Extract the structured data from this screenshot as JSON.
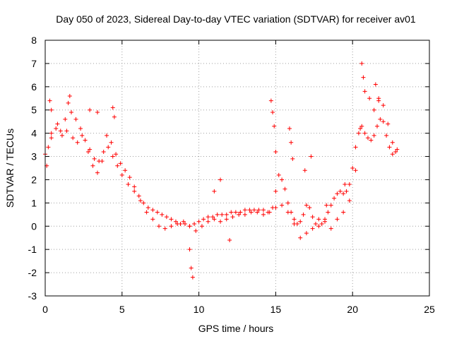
{
  "chart_data": {
    "type": "scatter",
    "title": "Day 050 of 2023, Sidereal Day-to-day VTEC variation (SDTVAR) for receiver av01",
    "xlabel": "GPS time / hours",
    "ylabel": "SDTVAR / TECUs",
    "xlim": [
      0,
      25
    ],
    "ylim": [
      -3,
      8
    ],
    "xticks": [
      "0",
      "5",
      "10",
      "15",
      "20",
      "25"
    ],
    "yticks": [
      "-3",
      "-2",
      "-1",
      "0",
      "1",
      "2",
      "3",
      "4",
      "5",
      "6",
      "7",
      "8"
    ],
    "grid": true,
    "marker": "+",
    "marker_color": "#ff0000",
    "series": [
      {
        "name": "main-trace",
        "x": [
          0.0,
          0.2,
          0.4,
          0.7,
          1.0,
          1.3,
          1.5,
          1.7,
          2.0,
          2.3,
          2.6,
          2.9,
          3.2,
          3.5,
          3.8,
          4.0,
          4.3,
          4.6,
          4.9,
          5.2,
          5.5,
          5.8,
          6.1,
          6.4,
          6.7,
          7.0,
          7.3,
          7.6,
          7.9,
          8.2,
          8.5,
          8.8,
          9.1,
          9.4,
          9.7,
          10.0,
          10.3,
          10.6,
          10.9,
          11.2,
          11.5,
          11.8,
          12.1,
          12.4,
          12.7,
          13.0,
          13.3,
          13.6,
          13.9,
          14.2,
          14.5,
          14.8,
          15.0,
          15.2,
          15.4,
          15.6,
          15.8,
          16.0,
          16.2,
          16.4,
          16.6,
          16.8,
          17.0,
          17.2,
          17.4,
          17.6,
          17.8,
          18.0,
          18.2,
          18.4,
          18.6,
          18.8,
          19.0,
          19.2,
          19.4,
          19.6,
          19.8,
          20.0,
          20.2,
          20.4,
          20.6,
          20.8,
          21.0,
          21.2,
          21.4,
          21.6,
          21.8,
          22.0,
          22.2,
          22.4,
          22.6,
          22.8
        ],
        "y": [
          3.1,
          3.4,
          4.0,
          4.2,
          4.1,
          4.6,
          5.3,
          4.9,
          4.6,
          4.2,
          3.7,
          3.3,
          2.9,
          2.8,
          3.2,
          3.9,
          3.6,
          3.1,
          2.7,
          2.4,
          2.1,
          1.7,
          1.3,
          1.0,
          0.8,
          0.7,
          0.6,
          0.5,
          0.4,
          0.3,
          0.2,
          0.1,
          0.1,
          0.0,
          0.1,
          0.2,
          0.3,
          0.4,
          0.4,
          0.5,
          0.5,
          0.5,
          0.6,
          0.6,
          0.6,
          0.7,
          0.7,
          0.7,
          0.7,
          0.7,
          0.6,
          0.8,
          1.5,
          2.2,
          2.0,
          1.6,
          1.0,
          0.6,
          0.3,
          0.1,
          0.2,
          0.5,
          0.9,
          0.8,
          0.4,
          0.1,
          0.0,
          0.1,
          0.3,
          0.6,
          0.9,
          1.2,
          1.4,
          1.5,
          1.4,
          1.5,
          1.8,
          2.5,
          3.4,
          4.0,
          4.3,
          4.0,
          3.8,
          3.7,
          3.9,
          4.3,
          4.6,
          4.5,
          3.9,
          3.4,
          3.1,
          3.2
        ]
      },
      {
        "name": "secondary-trace",
        "x": [
          0.1,
          0.4,
          0.8,
          1.1,
          1.4,
          1.8,
          2.1,
          2.4,
          2.8,
          3.1,
          3.4,
          3.7,
          4.1,
          4.4,
          4.7,
          5.0,
          5.4,
          5.8,
          6.2,
          6.6,
          7.0,
          7.4,
          7.8,
          8.2,
          8.6,
          9.0,
          9.4,
          9.8,
          10.2,
          10.6,
          11.0,
          11.4,
          11.8,
          12.2,
          12.6,
          13.0,
          13.4,
          13.8,
          14.2,
          14.6,
          15.0,
          15.4,
          15.8,
          16.2,
          16.6,
          17.0,
          17.4,
          17.8,
          18.2,
          18.6,
          19.0,
          19.4,
          19.8,
          20.2,
          20.5,
          20.8,
          21.1,
          21.4,
          21.7,
          22.0,
          22.3,
          22.6,
          22.9
        ],
        "y": [
          2.6,
          3.8,
          4.4,
          3.9,
          4.1,
          3.8,
          3.6,
          3.9,
          3.2,
          2.6,
          2.3,
          2.8,
          3.4,
          3.0,
          2.6,
          2.2,
          1.8,
          1.5,
          1.1,
          0.6,
          0.3,
          0.0,
          -0.1,
          0.0,
          0.1,
          0.2,
          0.0,
          -0.2,
          0.0,
          0.2,
          0.3,
          0.2,
          0.3,
          0.4,
          0.5,
          0.5,
          0.6,
          0.6,
          0.5,
          0.6,
          0.8,
          0.9,
          0.6,
          0.1,
          -0.5,
          -0.3,
          -0.1,
          0.3,
          0.2,
          -0.1,
          0.3,
          0.6,
          1.1,
          2.4,
          4.2,
          5.8,
          5.5,
          5.0,
          5.5,
          5.2,
          4.4,
          3.6,
          3.3
        ]
      },
      {
        "name": "spike-traces",
        "x": [
          0.3,
          0.4,
          1.6,
          2.9,
          3.4,
          4.4,
          4.5,
          9.4,
          9.5,
          9.6,
          11.0,
          11.4,
          12.0,
          14.7,
          14.8,
          14.9,
          15.0,
          15.9,
          16.0,
          16.1,
          16.9,
          17.3,
          18.3,
          19.5,
          20.6,
          20.7,
          21.5,
          21.7
        ],
        "y": [
          5.4,
          5.0,
          5.6,
          5.0,
          4.9,
          5.1,
          4.7,
          -1.0,
          -1.8,
          -2.2,
          1.5,
          2.0,
          -0.6,
          5.4,
          4.9,
          4.3,
          3.2,
          4.2,
          3.6,
          2.9,
          2.4,
          3.0,
          0.9,
          1.8,
          7.0,
          6.4,
          6.1,
          5.4
        ]
      }
    ]
  }
}
